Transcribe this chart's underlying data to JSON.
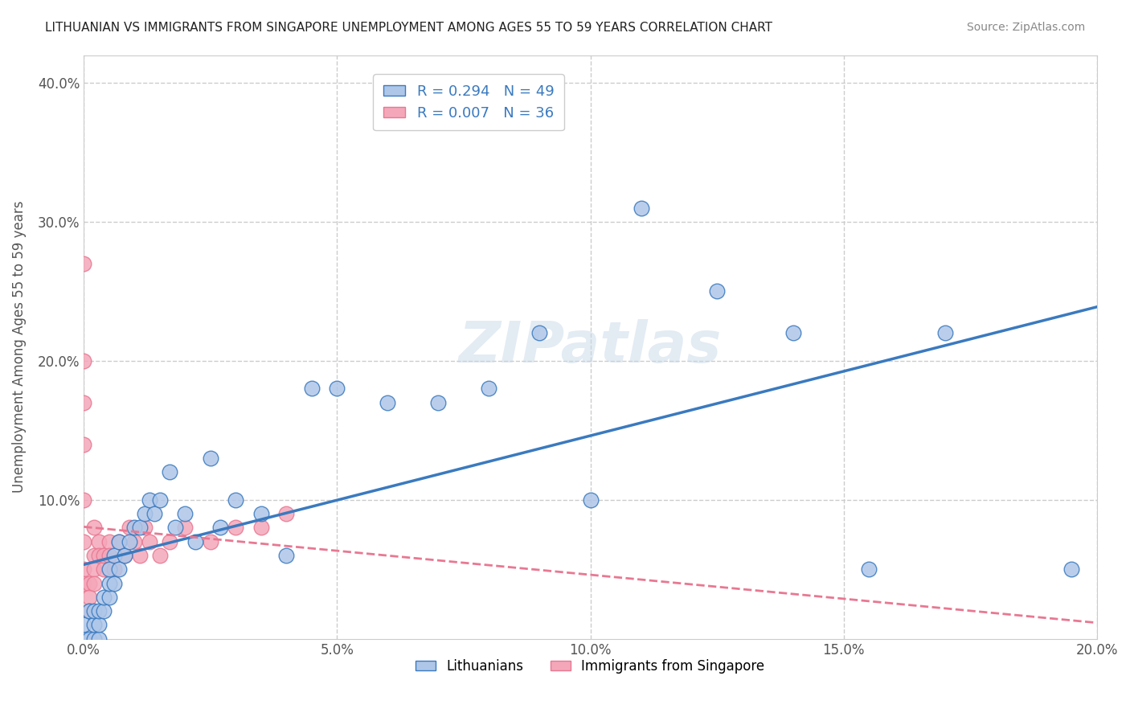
{
  "title": "LITHUANIAN VS IMMIGRANTS FROM SINGAPORE UNEMPLOYMENT AMONG AGES 55 TO 59 YEARS CORRELATION CHART",
  "source": "Source: ZipAtlas.com",
  "ylabel": "Unemployment Among Ages 55 to 59 years",
  "xlabel": "",
  "xlim": [
    0.0,
    0.2
  ],
  "ylim": [
    0.0,
    0.42
  ],
  "xticks": [
    0.0,
    0.05,
    0.1,
    0.15,
    0.2
  ],
  "xticklabels": [
    "0.0%",
    "5.0%",
    "10.0%",
    "15.0%",
    "20.0%"
  ],
  "yticks": [
    0.0,
    0.1,
    0.2,
    0.3,
    0.4
  ],
  "yticklabels": [
    "",
    "10.0%",
    "20.0%",
    "30.0%",
    "40.0%"
  ],
  "grid_color": "#cccccc",
  "background_color": "#ffffff",
  "lithuanian_x": [
    0.0,
    0.0,
    0.001,
    0.001,
    0.002,
    0.002,
    0.002,
    0.003,
    0.003,
    0.003,
    0.004,
    0.004,
    0.005,
    0.005,
    0.005,
    0.006,
    0.006,
    0.007,
    0.007,
    0.008,
    0.009,
    0.01,
    0.011,
    0.012,
    0.013,
    0.014,
    0.015,
    0.017,
    0.018,
    0.02,
    0.022,
    0.025,
    0.027,
    0.03,
    0.035,
    0.04,
    0.045,
    0.05,
    0.06,
    0.07,
    0.08,
    0.09,
    0.1,
    0.11,
    0.125,
    0.14,
    0.155,
    0.17,
    0.195
  ],
  "lithuanian_y": [
    0.0,
    0.01,
    0.0,
    0.02,
    0.0,
    0.01,
    0.02,
    0.0,
    0.01,
    0.02,
    0.02,
    0.03,
    0.03,
    0.04,
    0.05,
    0.04,
    0.06,
    0.05,
    0.07,
    0.06,
    0.07,
    0.08,
    0.08,
    0.09,
    0.1,
    0.09,
    0.1,
    0.12,
    0.08,
    0.09,
    0.07,
    0.13,
    0.08,
    0.1,
    0.09,
    0.06,
    0.18,
    0.18,
    0.17,
    0.17,
    0.18,
    0.22,
    0.1,
    0.31,
    0.25,
    0.22,
    0.05,
    0.22,
    0.05
  ],
  "singapore_x": [
    0.0,
    0.0,
    0.0,
    0.0,
    0.0,
    0.0,
    0.0,
    0.0,
    0.001,
    0.001,
    0.001,
    0.002,
    0.002,
    0.002,
    0.002,
    0.003,
    0.003,
    0.004,
    0.004,
    0.005,
    0.005,
    0.006,
    0.007,
    0.008,
    0.009,
    0.01,
    0.011,
    0.012,
    0.013,
    0.015,
    0.017,
    0.02,
    0.025,
    0.03,
    0.035,
    0.04
  ],
  "singapore_y": [
    0.27,
    0.2,
    0.17,
    0.14,
    0.1,
    0.07,
    0.05,
    0.04,
    0.04,
    0.03,
    0.02,
    0.08,
    0.06,
    0.05,
    0.04,
    0.07,
    0.06,
    0.05,
    0.06,
    0.07,
    0.06,
    0.05,
    0.07,
    0.06,
    0.08,
    0.07,
    0.06,
    0.08,
    0.07,
    0.06,
    0.07,
    0.08,
    0.07,
    0.08,
    0.08,
    0.09
  ],
  "lit_R": 0.294,
  "lit_N": 49,
  "sin_R": 0.007,
  "sin_N": 36,
  "lit_color": "#aec6e8",
  "sin_color": "#f4a7b9",
  "lit_line_color": "#3a7abf",
  "sin_line_color": "#e87892",
  "watermark": "ZIPatlas",
  "watermark_color": "#c8d8e8"
}
